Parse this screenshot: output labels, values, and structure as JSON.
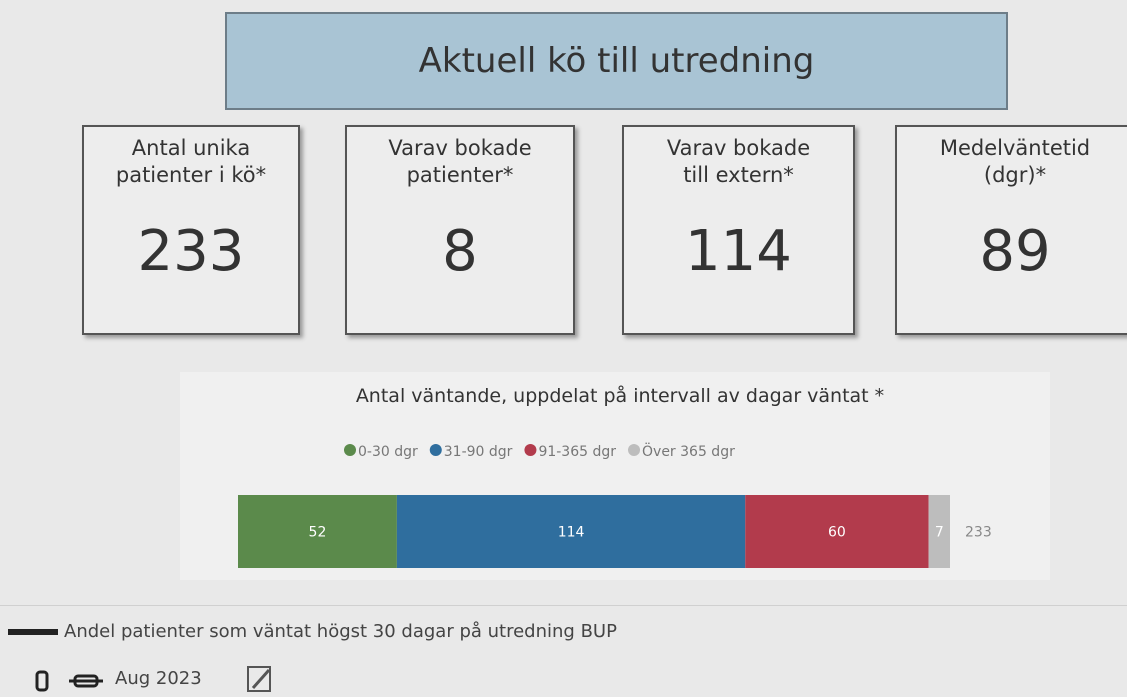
{
  "title": "Aktuell kö till utredning",
  "kpis": [
    {
      "label": "Antal unika\npatienter i kö*",
      "value": 233
    },
    {
      "label": "Varav bokade\npatienter*",
      "value": 8
    },
    {
      "label": "Varav bokade\ntill extern*",
      "value": 114
    },
    {
      "label": "Medelväntetid\n(dgr)*",
      "value": 89
    }
  ],
  "chart_data": {
    "type": "bar",
    "stacked": true,
    "orientation": "horizontal",
    "title": "Antal väntande, uppdelat på intervall av dagar väntat *",
    "series": [
      {
        "name": "0-30 dgr",
        "color": "#5b8a4b",
        "values": [
          52
        ]
      },
      {
        "name": "31-90 dgr",
        "color": "#2f6e9e",
        "values": [
          114
        ]
      },
      {
        "name": "91-365 dgr",
        "color": "#b23b4c",
        "values": [
          60
        ]
      },
      {
        "name": "Över 365 dgr",
        "color": "#bdbdbd",
        "values": [
          7
        ]
      }
    ],
    "total": 233
  },
  "footer": {
    "measure": "Andel patienter som väntat högst 30 dagar på utredning BUP",
    "period": "Aug 2023"
  }
}
